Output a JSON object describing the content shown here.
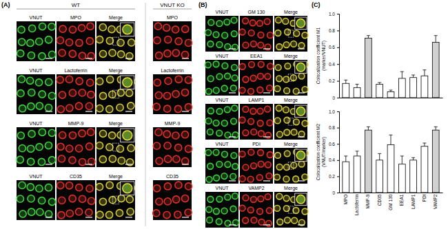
{
  "figure": {
    "panel_labels": [
      "(A)",
      "(B)",
      "(C)"
    ],
    "panel_a": {
      "headers": [
        "WT",
        "VNUT KO"
      ],
      "rows": [
        [
          "VNUT",
          "MPO",
          "Merge",
          "MPO"
        ],
        [
          "VNUT",
          "Lactoferrin",
          "Merge",
          "Lactoferrin"
        ],
        [
          "VNUT",
          "MMP-9",
          "Merge",
          "MMP-9"
        ],
        [
          "VNUT",
          "CD35",
          "Merge",
          "CD35"
        ]
      ]
    },
    "panel_b": {
      "rows": [
        [
          "VNUT",
          "GM 130",
          "Merge"
        ],
        [
          "VNUT",
          "EEA1",
          "Merge"
        ],
        [
          "VNUT",
          "LAMP1",
          "Merge"
        ],
        [
          "VNUT",
          "PDI",
          "Merge"
        ],
        [
          "VNUT",
          "VAMP2",
          "Merge"
        ]
      ]
    }
  },
  "chart_data": [
    {
      "type": "bar",
      "y_label": [
        "Colocalization coefficient M1",
        "(marker/VNUT)"
      ],
      "categories": [
        "MPO",
        "Lactoferrin",
        "MMP-9",
        "CD35",
        "GM 130",
        "EEA1",
        "LAMP1",
        "PDI",
        "VAMP2"
      ],
      "values": [
        0.17,
        0.12,
        0.71,
        0.16,
        0.07,
        0.23,
        0.24,
        0.26,
        0.66
      ],
      "errors": [
        0.04,
        0.04,
        0.03,
        0.02,
        0.02,
        0.08,
        0.03,
        0.07,
        0.08
      ],
      "colors": [
        "#ffffff",
        "#ffffff",
        "#d0d0d0",
        "#ffffff",
        "#ffffff",
        "#ffffff",
        "#ffffff",
        "#ffffff",
        "#d0d0d0"
      ],
      "ylim": [
        0,
        1
      ],
      "yticks": [
        0,
        0.2,
        0.4,
        0.6,
        0.8,
        {
          "value": 1,
          "label": "1.0"
        }
      ],
      "tick_labels": "y"
    },
    {
      "type": "bar",
      "y_label": [
        "Colocalization coefficient M2",
        "(VNUT/marker)"
      ],
      "categories": [
        "MPO",
        "Lactoferrin",
        "MMP-9",
        "CD35",
        "GM 130",
        "EEA1",
        "LAMP1",
        "PDI",
        "VAMP2"
      ],
      "values": [
        0.38,
        0.45,
        0.77,
        0.4,
        0.59,
        0.35,
        0.4,
        0.57,
        0.77
      ],
      "errors": [
        0.07,
        0.06,
        0.04,
        0.08,
        0.12,
        0.1,
        0.03,
        0.04,
        0.04
      ],
      "colors": [
        "#ffffff",
        "#ffffff",
        "#d0d0d0",
        "#ffffff",
        "#ffffff",
        "#ffffff",
        "#ffffff",
        "#ffffff",
        "#d0d0d0"
      ],
      "ylim": [
        0,
        1
      ],
      "yticks": [
        0,
        0.2,
        0.4,
        0.6,
        0.8,
        {
          "value": 1,
          "label": "1.0"
        }
      ],
      "tick_labels": true
    }
  ]
}
